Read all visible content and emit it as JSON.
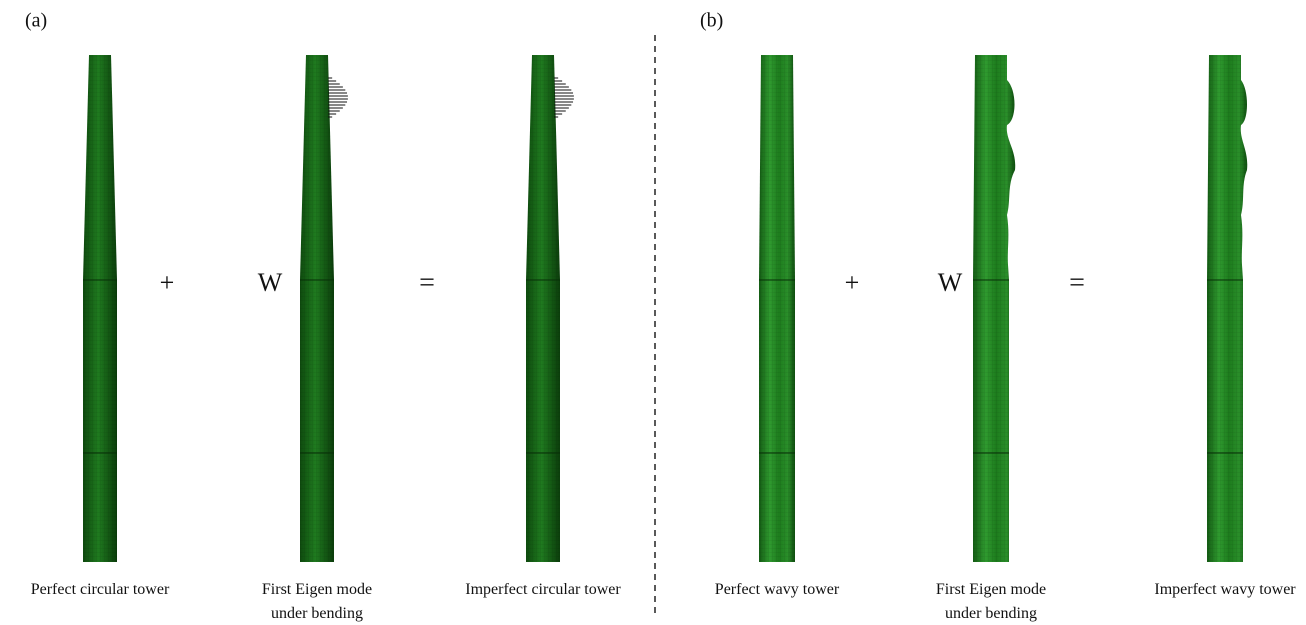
{
  "panels": [
    {
      "label": "(a)",
      "plus": "+",
      "weight": "W",
      "equals": "=",
      "towers": [
        {
          "caption": [
            "Perfect circular tower"
          ]
        },
        {
          "caption": [
            "First Eigen mode",
            "under bending"
          ]
        },
        {
          "caption": [
            "Imperfect circular tower"
          ]
        }
      ]
    },
    {
      "label": "(b)",
      "plus": "+",
      "weight": "W",
      "equals": "=",
      "towers": [
        {
          "caption": [
            "Perfect wavy tower"
          ]
        },
        {
          "caption": [
            "First Eigen mode",
            "under bending"
          ]
        },
        {
          "caption": [
            "Imperfect wavy tower"
          ]
        }
      ]
    }
  ]
}
